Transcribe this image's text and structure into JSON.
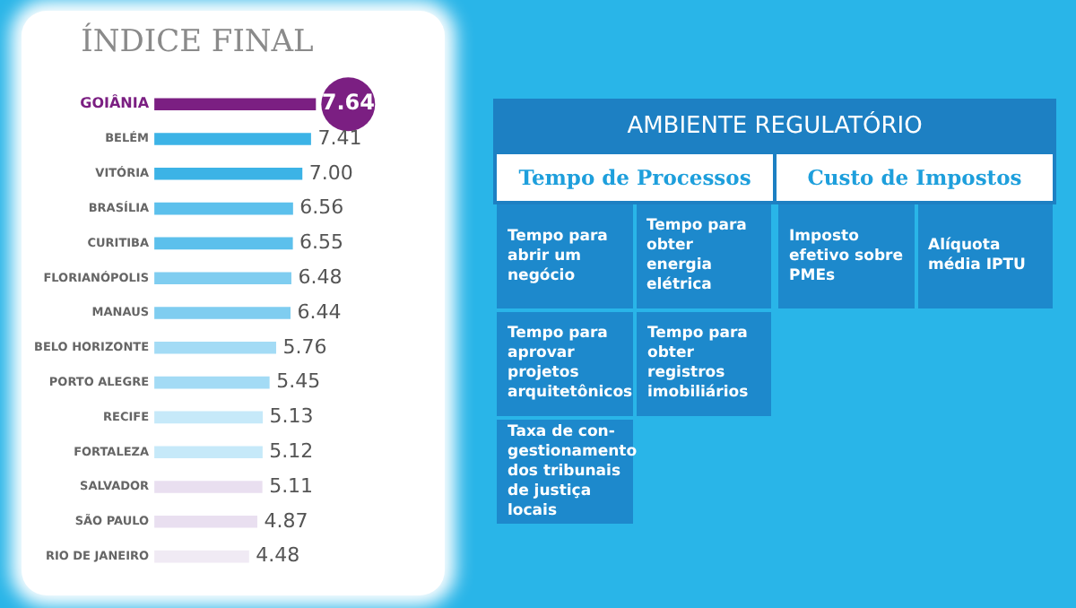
{
  "chart_data": [
    {
      "type": "bar",
      "orientation": "horizontal",
      "title": "ÍNDICE FINAL",
      "categories": [
        "GOIÂNIA",
        "BELÉM",
        "VITÓRIA",
        "BRASÍLIA",
        "CURITIBA",
        "FLORIANÓPOLIS",
        "MANAUS",
        "BELO HORIZONTE",
        "PORTO ALEGRE",
        "RECIFE",
        "FORTALEZA",
        "SALVADOR",
        "SÃO PAULO",
        "RIO DE JANEIRO"
      ],
      "values": [
        7.64,
        7.41,
        7.0,
        6.56,
        6.55,
        6.48,
        6.44,
        5.76,
        5.45,
        5.13,
        5.12,
        5.11,
        4.87,
        4.48
      ],
      "value_labels": [
        "7.64",
        "7.41",
        "7.00",
        "6.56",
        "6.55",
        "6.48",
        "6.44",
        "5.76",
        "5.45",
        "5.13",
        "5.12",
        "5.11",
        "4.87",
        "4.48"
      ],
      "colors": [
        "#7b1f82",
        "#3cb3e6",
        "#3cb3e6",
        "#5cc0ec",
        "#5cc0ec",
        "#7fcdf0",
        "#7fcdf0",
        "#a3dbf5",
        "#a3dbf5",
        "#c6e9f9",
        "#c6e9f9",
        "#e9dff0",
        "#e9dff0",
        "#f0eaf4"
      ],
      "grid": false,
      "legend": false
    },
    {
      "type": "other",
      "title": "AMBIENTE REGULATÓRIO",
      "categories": [
        "Tempo de Processos",
        "Custo de Impostos"
      ],
      "cell_labels": [
        [
          "Tempo para abrir um negócio",
          "Tempo para obter energia elétrica",
          "Imposto efetivo sobre PMEs",
          "Alíquota média IPTU"
        ],
        [
          "Tempo para aprovar projetos arquitetônicos",
          "Tempo para obter registros imobiliários",
          null,
          null
        ],
        [
          "Taxa de con-gestionamento dos tribunais de justiça locais",
          null,
          null,
          null
        ]
      ]
    }
  ]
}
